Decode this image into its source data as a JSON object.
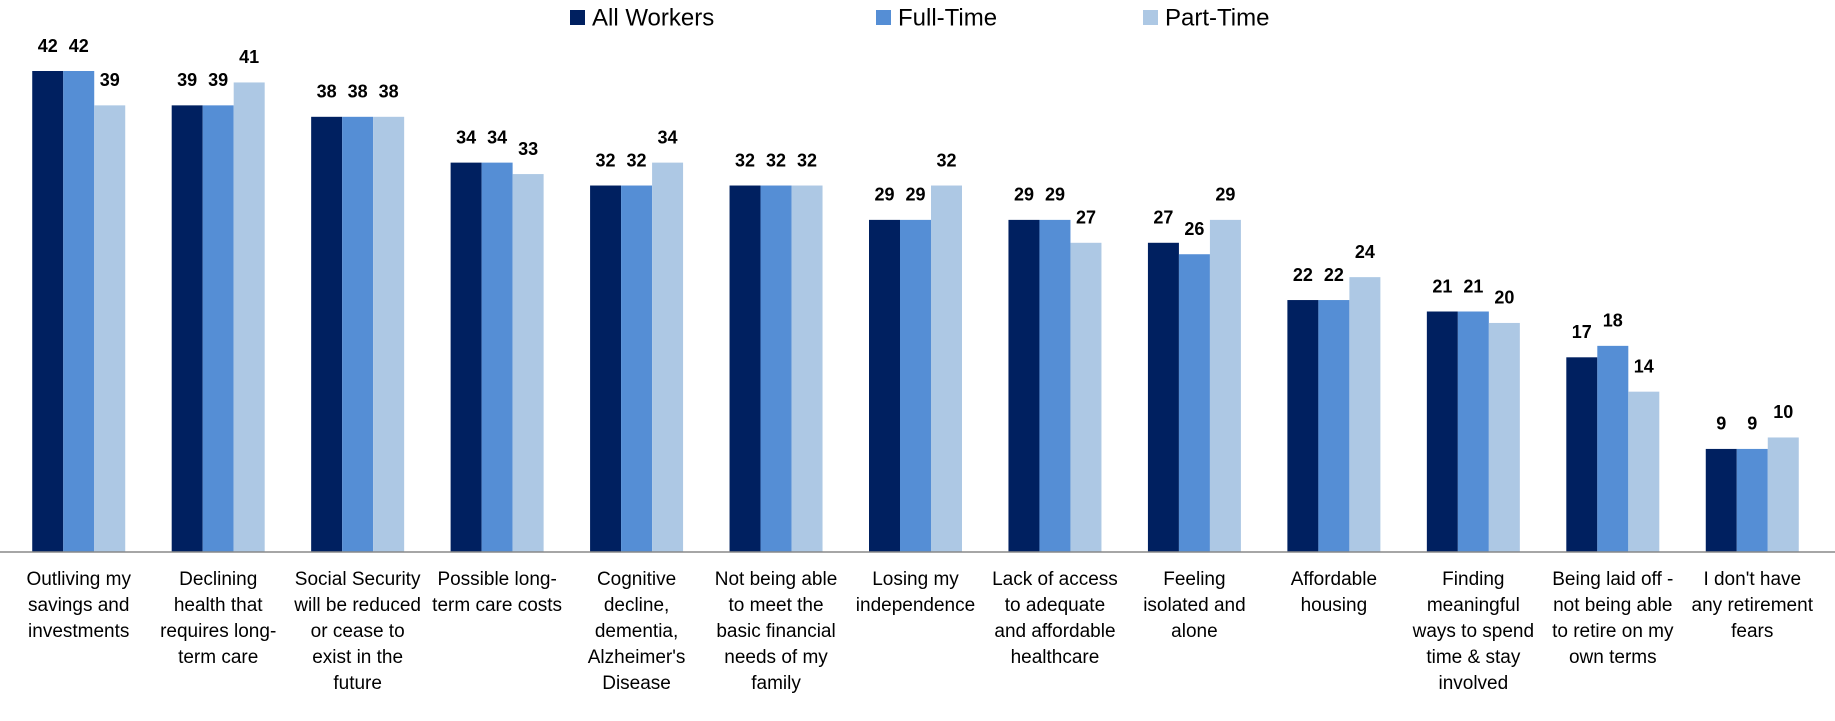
{
  "chart_data": {
    "type": "bar",
    "categories": [
      "Outliving my savings and investments",
      "Declining health that requires long-term care",
      "Social Security will be reduced or cease to exist in the future",
      "Possible long-term care costs",
      "Cognitive decline, dementia, Alzheimer's Disease",
      "Not being able to meet the basic financial needs of my family",
      "Losing my independence",
      "Lack of access to adequate and affordable healthcare",
      "Feeling isolated and alone",
      "Affordable housing",
      "Finding meaningful ways to spend time & stay involved",
      "Being laid off - not being able to retire on my own terms",
      "I don't have any retirement fears"
    ],
    "series": [
      {
        "name": "All Workers",
        "color": "#002060",
        "values": [
          42,
          39,
          38,
          34,
          32,
          32,
          29,
          29,
          27,
          22,
          21,
          17,
          9
        ]
      },
      {
        "name": "Full-Time",
        "color": "#558ed5",
        "values": [
          42,
          39,
          38,
          34,
          32,
          32,
          29,
          29,
          26,
          22,
          21,
          18,
          9
        ]
      },
      {
        "name": "Part-Time",
        "color": "#adc8e4",
        "values": [
          39,
          41,
          38,
          33,
          34,
          32,
          32,
          27,
          29,
          24,
          20,
          14,
          10
        ]
      }
    ],
    "legend": "top"
  }
}
